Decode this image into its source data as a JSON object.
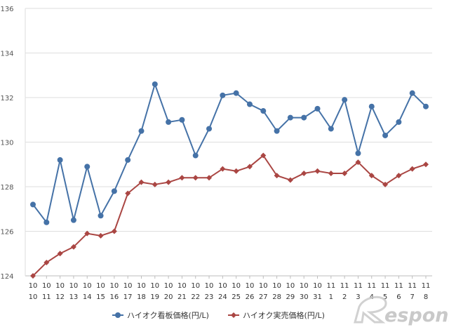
{
  "chart_data": {
    "type": "line",
    "title": "",
    "xlabel": "",
    "ylabel": "",
    "ylim": [
      124,
      136
    ],
    "yticks": [
      124,
      126,
      128,
      130,
      132,
      134,
      136
    ],
    "grid": true,
    "legend_position": "bottom",
    "categories": [
      [
        "10",
        "10"
      ],
      [
        "10",
        "11"
      ],
      [
        "10",
        "12"
      ],
      [
        "10",
        "13"
      ],
      [
        "10",
        "14"
      ],
      [
        "10",
        "15"
      ],
      [
        "10",
        "16"
      ],
      [
        "10",
        "17"
      ],
      [
        "10",
        "18"
      ],
      [
        "10",
        "19"
      ],
      [
        "10",
        "20"
      ],
      [
        "10",
        "21"
      ],
      [
        "10",
        "22"
      ],
      [
        "10",
        "23"
      ],
      [
        "10",
        "24"
      ],
      [
        "10",
        "25"
      ],
      [
        "10",
        "26"
      ],
      [
        "10",
        "27"
      ],
      [
        "10",
        "28"
      ],
      [
        "10",
        "29"
      ],
      [
        "10",
        "30"
      ],
      [
        "10",
        "31"
      ],
      [
        "11",
        "1"
      ],
      [
        "11",
        "2"
      ],
      [
        "11",
        "3"
      ],
      [
        "11",
        "4"
      ],
      [
        "11",
        "5"
      ],
      [
        "11",
        "6"
      ],
      [
        "11",
        "7"
      ],
      [
        "11",
        "8"
      ]
    ],
    "series": [
      {
        "name": "ハイオク看板価格(円/L)",
        "color": "#4572a7",
        "marker": "circle",
        "values": [
          127.2,
          126.4,
          129.2,
          126.5,
          128.9,
          126.7,
          127.8,
          129.2,
          130.5,
          132.6,
          130.9,
          131.0,
          129.4,
          130.6,
          132.1,
          132.2,
          131.7,
          131.4,
          130.5,
          131.1,
          131.1,
          131.5,
          130.6,
          131.9,
          129.5,
          131.6,
          130.3,
          130.9,
          132.2,
          131.6
        ]
      },
      {
        "name": "ハイオク実売価格(円/L)",
        "color": "#aa4643",
        "marker": "diamond",
        "values": [
          124.0,
          124.6,
          125.0,
          125.3,
          125.9,
          125.8,
          126.0,
          127.7,
          128.2,
          128.1,
          128.2,
          128.4,
          128.4,
          128.4,
          128.8,
          128.7,
          128.9,
          129.4,
          128.5,
          128.3,
          128.6,
          128.7,
          128.6,
          128.6,
          129.1,
          128.5,
          128.1,
          128.5,
          128.8,
          129.0
        ]
      }
    ]
  },
  "watermark": {
    "text": "esponse.",
    "icon": "response-r-logo-icon"
  }
}
